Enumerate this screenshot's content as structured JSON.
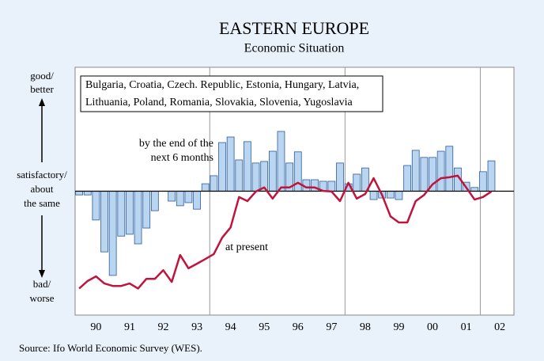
{
  "chart_data": {
    "type": "combo",
    "title": "EASTERN EUROPE",
    "subtitle": "Economic Situation",
    "box_text": [
      "Bulgaria, Croatia, Czech. Republic, Estonia, Hungary, Latvia,",
      "Lithuania, Poland, Romania, Slovakia, Slovenia, Yugoslavia"
    ],
    "side_labels": [
      [
        "good/",
        "better"
      ],
      [
        "satisfactory/",
        "about",
        "the same"
      ],
      [
        "bad/",
        "worse"
      ]
    ],
    "source": "Source: Ifo World Economic Survey (WES).",
    "x": [
      1990.0,
      1990.25,
      1990.5,
      1990.75,
      1991.0,
      1991.25,
      1991.5,
      1991.75,
      1992.0,
      1992.25,
      1992.5,
      1992.75,
      1993.0,
      1993.25,
      1993.5,
      1993.75,
      1994.0,
      1994.25,
      1994.5,
      1994.75,
      1995.0,
      1995.25,
      1995.5,
      1995.75,
      1996.0,
      1996.25,
      1996.5,
      1996.75,
      1997.0,
      1997.25,
      1997.5,
      1997.75,
      1998.0,
      1998.25,
      1998.5,
      1998.75,
      1999.0,
      1999.25,
      1999.5,
      1999.75,
      2000.0,
      2000.25,
      2000.5,
      2000.75,
      2001.0,
      2001.25,
      2001.5,
      2001.75,
      2002.0,
      2002.25
    ],
    "series": [
      {
        "name": [
          "by the end of the",
          "next 6 months"
        ],
        "type": "bar",
        "color": "#b9d5f0",
        "edge": "#2b5c9c",
        "values": [
          4.88,
          4.88,
          4.07,
          3.04,
          2.28,
          3.55,
          3.61,
          3.3,
          3.81,
          4.37,
          null,
          4.68,
          4.53,
          4.63,
          4.42,
          5.24,
          5.5,
          6.57,
          6.75,
          6.01,
          6.6,
          5.91,
          5.96,
          6.29,
          6.93,
          5.91,
          6.27,
          5.37,
          5.37,
          5.32,
          5.32,
          5.91,
          5.24,
          5.55,
          5.75,
          4.73,
          4.78,
          4.78,
          4.73,
          5.83,
          6.32,
          6.09,
          6.09,
          6.29,
          6.45,
          5.75,
          5.29,
          5.12,
          5.63,
          5.98
        ]
      },
      {
        "name": [
          "at present"
        ],
        "type": "line",
        "color": "#c0143c",
        "values": [
          1.86,
          2.1,
          2.25,
          2.02,
          1.94,
          1.94,
          2.02,
          1.86,
          2.17,
          2.17,
          2.45,
          2.07,
          2.94,
          2.51,
          2.66,
          2.81,
          2.97,
          3.5,
          3.83,
          4.81,
          4.68,
          4.99,
          5.12,
          4.76,
          5.12,
          5.12,
          5.27,
          5.12,
          5.12,
          5.01,
          4.99,
          4.68,
          5.27,
          4.76,
          4.91,
          5.42,
          4.88,
          4.19,
          3.99,
          3.99,
          4.68,
          4.88,
          5.22,
          5.42,
          5.45,
          5.5,
          5.12,
          4.73,
          4.81,
          4.99
        ]
      }
    ],
    "baseline": 5,
    "ylim": [
      1,
      9
    ],
    "xlim": [
      1989.88,
      2002.92
    ],
    "xticks": [
      {
        "value": 1990.5,
        "label": "90"
      },
      {
        "value": 1991.5,
        "label": "91"
      },
      {
        "value": 1992.5,
        "label": "92"
      },
      {
        "value": 1993.5,
        "label": "93"
      },
      {
        "value": 1994.5,
        "label": "94"
      },
      {
        "value": 1995.5,
        "label": "95"
      },
      {
        "value": 1996.5,
        "label": "96"
      },
      {
        "value": 1997.5,
        "label": "97"
      },
      {
        "value": 1998.5,
        "label": "98"
      },
      {
        "value": 1999.5,
        "label": "99"
      },
      {
        "value": 2000.5,
        "label": "00"
      },
      {
        "value": 2001.5,
        "label": "01"
      },
      {
        "value": 2002.5,
        "label": "02"
      }
    ],
    "vlines": [
      1993.88,
      1997.9,
      2001.92
    ]
  }
}
